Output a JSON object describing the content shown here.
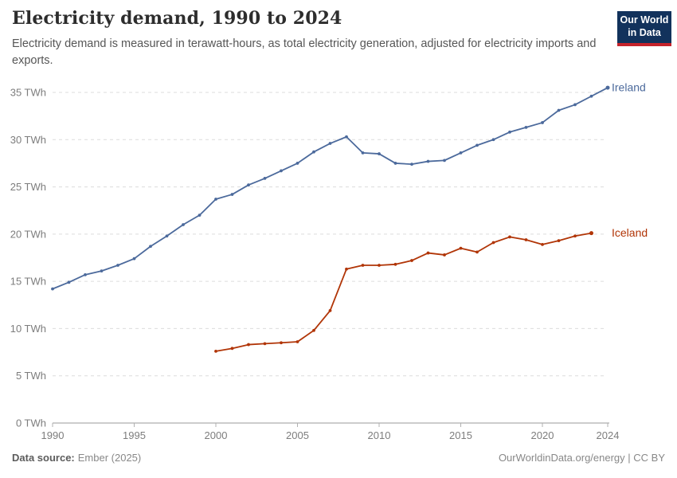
{
  "header": {
    "title": "Electricity demand, 1990 to 2024",
    "subtitle": "Electricity demand is measured in terawatt-hours, as total electricity generation, adjusted for electricity imports and exports.",
    "logo": {
      "line1": "Our World",
      "line2": "in Data",
      "bg_color": "#12325c",
      "accent_color": "#c5232b"
    }
  },
  "chart_data": {
    "type": "line",
    "title": "Electricity demand, 1990 to 2024",
    "unit": "TWh",
    "xlabel": "",
    "ylabel": "",
    "xlim": [
      1990,
      2024
    ],
    "ylim": [
      0,
      35
    ],
    "x_ticks": [
      1990,
      1995,
      2000,
      2005,
      2010,
      2015,
      2020,
      2024
    ],
    "y_ticks": [
      0,
      5,
      10,
      15,
      20,
      25,
      30,
      35
    ],
    "y_tick_suffix": " TWh",
    "grid": "horizontal-dashed",
    "legend_position": "line-end-labels",
    "series": [
      {
        "name": "Ireland",
        "color": "#4c6a9c",
        "start_year": 1990,
        "values": [
          14.2,
          14.9,
          15.7,
          16.1,
          16.7,
          17.4,
          18.7,
          19.8,
          21.0,
          22.0,
          23.7,
          24.2,
          25.2,
          25.9,
          26.7,
          27.5,
          28.7,
          29.6,
          30.3,
          28.6,
          28.5,
          27.5,
          27.4,
          27.7,
          27.8,
          28.6,
          29.4,
          30.0,
          30.8,
          31.3,
          31.8,
          33.1,
          33.7,
          34.6,
          35.5
        ]
      },
      {
        "name": "Iceland",
        "color": "#b13507",
        "start_year": 2000,
        "values": [
          7.6,
          7.9,
          8.3,
          8.4,
          8.5,
          8.6,
          9.8,
          11.9,
          16.3,
          16.7,
          16.7,
          16.8,
          17.2,
          18.0,
          17.8,
          18.5,
          18.1,
          19.1,
          19.7,
          19.4,
          18.9,
          19.3,
          19.8,
          20.1
        ]
      }
    ]
  },
  "footer": {
    "datasource_label": "Data source:",
    "datasource_value": "Ember (2025)",
    "credit": "OurWorldinData.org/energy | CC BY"
  }
}
